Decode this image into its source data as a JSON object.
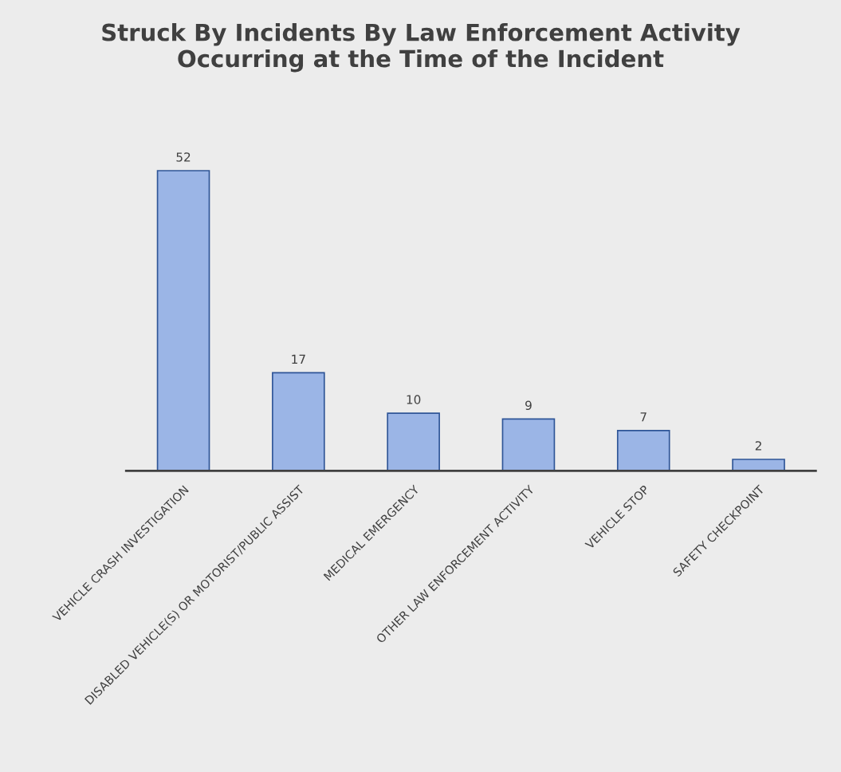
{
  "chart_data": {
    "type": "bar",
    "title": "Struck By Incidents By Law Enforcement Activity\nOccurring at the Time of the Incident",
    "categories": [
      "VEHICLE CRASH INVESTIGATION",
      "DISABLED VEHICLE(S) OR MOTORIST/PUBLIC ASSIST",
      "MEDICAL EMERGENCY",
      "OTHER LAW ENFORCEMENT ACTIVITY",
      "VEHICLE STOP",
      "SAFETY CHECKPOINT"
    ],
    "values": [
      52,
      17,
      10,
      9,
      7,
      2
    ],
    "color": "#9bb5e6",
    "data_labels": true
  }
}
